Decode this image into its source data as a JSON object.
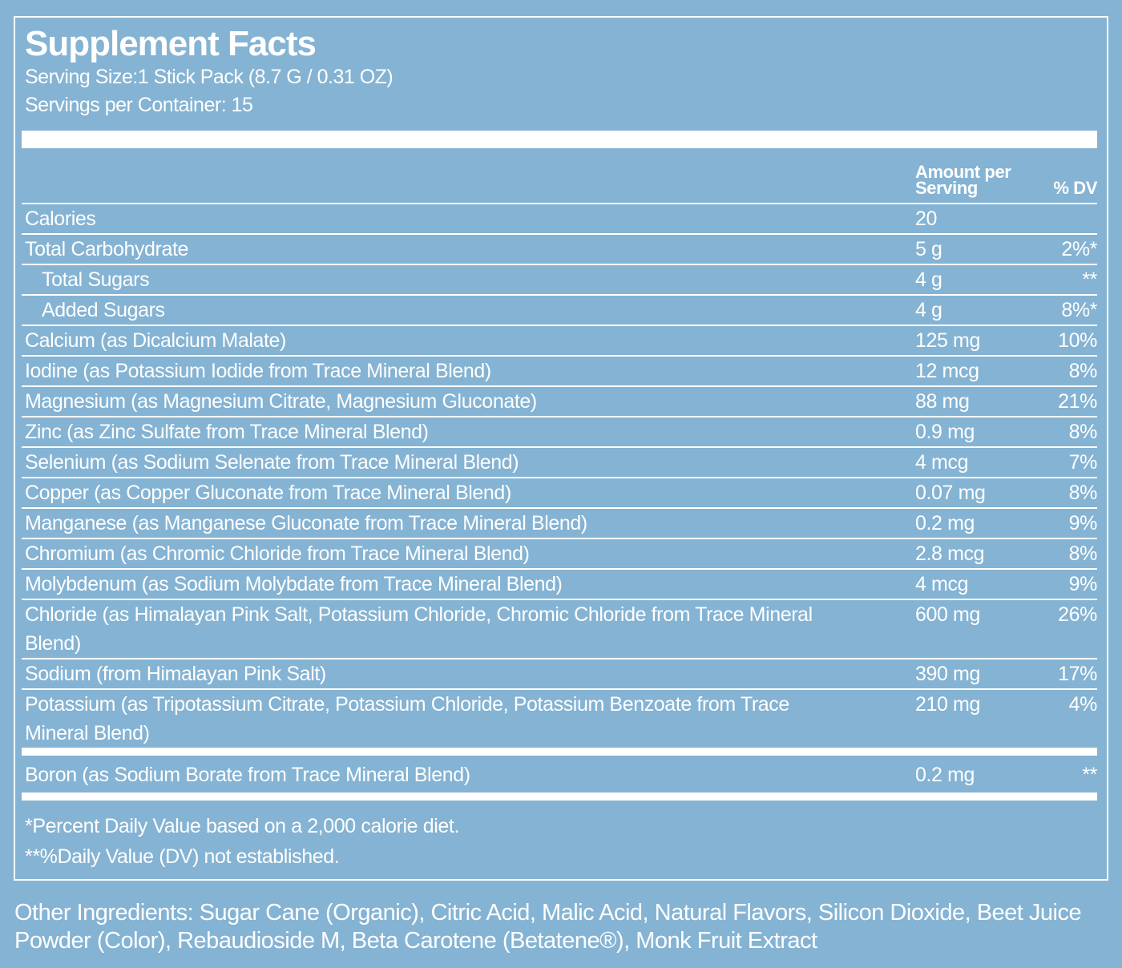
{
  "header": {
    "title": "Supplement Facts",
    "serving_size": "Serving Size:1 Stick Pack (8.7 G / 0.31 OZ)",
    "servings_per_container": "Servings per Container: 15"
  },
  "table": {
    "columns": [
      "Amount per Serving",
      "% DV"
    ],
    "rows": [
      [
        "Calories",
        "20"
      ],
      [
        "Total Carbohydrate",
        "5 g",
        "2%*"
      ],
      [
        "Total Sugars",
        "4 g",
        "**"
      ],
      [
        "Added Sugars",
        "4 g",
        "8%*"
      ],
      [
        "Calcium (as Dicalcium Malate)",
        "125 mg",
        "10%"
      ],
      [
        "Iodine (as Potassium Iodide from Trace Mineral Blend)",
        "12 mcg",
        "8%"
      ],
      [
        "Magnesium (as Magnesium Citrate, Magnesium Gluconate)",
        "88 mg",
        "21%"
      ],
      [
        "Zinc (as Zinc Sulfate from Trace Mineral Blend)",
        "0.9 mg",
        "8%"
      ],
      [
        "Selenium (as Sodium Selenate from Trace Mineral Blend)",
        "4 mcg",
        "7%"
      ],
      [
        "Copper (as Copper Gluconate from Trace Mineral Blend)",
        "0.07 mg",
        "8%"
      ],
      [
        "Manganese (as Manganese Gluconate from Trace Mineral Blend)",
        "0.2 mg",
        "9%"
      ],
      [
        "Chromium (as Chromic Chloride from Trace Mineral Blend)",
        "2.8 mcg",
        "8%"
      ],
      [
        "Molybdenum (as Sodium Molybdate from Trace Mineral Blend)",
        "4 mcg",
        "9%"
      ],
      [
        "Chloride (as Himalayan Pink Salt, Potassium Chloride, Chromic Chloride from Trace Mineral Blend)",
        "600 mg",
        "26%"
      ],
      [
        "Sodium (from Himalayan Pink Salt)",
        "390 mg",
        "17%"
      ],
      [
        "Potassium (as Tripotassium Citrate, Potassium Chloride, Potassium Benzoate from Trace Mineral Blend)",
        "210 mg",
        "4%"
      ]
    ],
    "extra_rows": [
      [
        "Boron (as Sodium Borate from Trace Mineral Blend)",
        "0.2 mg",
        "**"
      ]
    ]
  },
  "footnotes": [
    "*Percent Daily Value based on a 2,000 calorie diet.",
    "**%Daily Value (DV) not established."
  ],
  "other_ingredients": "Other Ingredients: Sugar Cane (Organic), Citric Acid, Malic Acid, Natural Flavors, Silicon Dioxide, Beet Juice Powder (Color), Rebaudioside M, Beta Carotene (Betatene®), Monk Fruit Extract"
}
